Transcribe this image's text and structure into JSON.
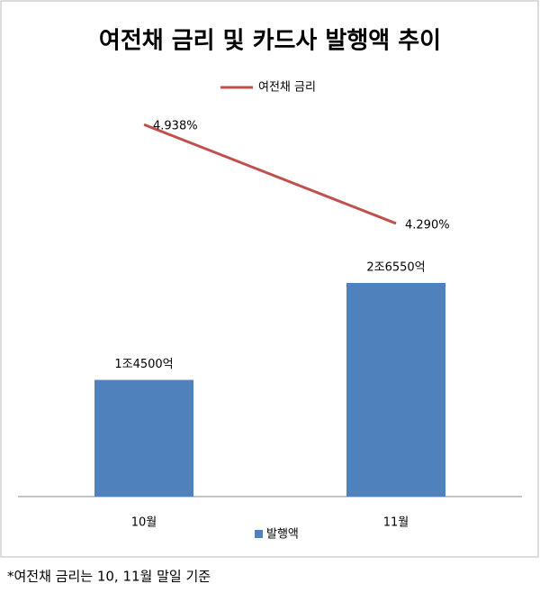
{
  "chart_data": {
    "type": "combo",
    "title": "여전채 금리 및 카드사 발행액 추이",
    "categories": [
      "10월",
      "11월"
    ],
    "series": [
      {
        "name": "발행액",
        "type": "bar",
        "color": "#4f81bd",
        "values": [
          14500,
          26550
        ],
        "value_labels": [
          "1조4500억",
          "2조6550억"
        ]
      },
      {
        "name": "여전채 금리",
        "type": "line",
        "axis": "y2",
        "color": "#c0504d",
        "values": [
          4.938,
          4.29
        ],
        "value_labels": [
          "4.938%",
          "4.290%"
        ]
      }
    ],
    "ylim": [
      0,
      55000
    ],
    "y2lim": [
      2.5,
      5.4
    ]
  },
  "note": "*여전채 금리는 10, 11월 말일 기준"
}
